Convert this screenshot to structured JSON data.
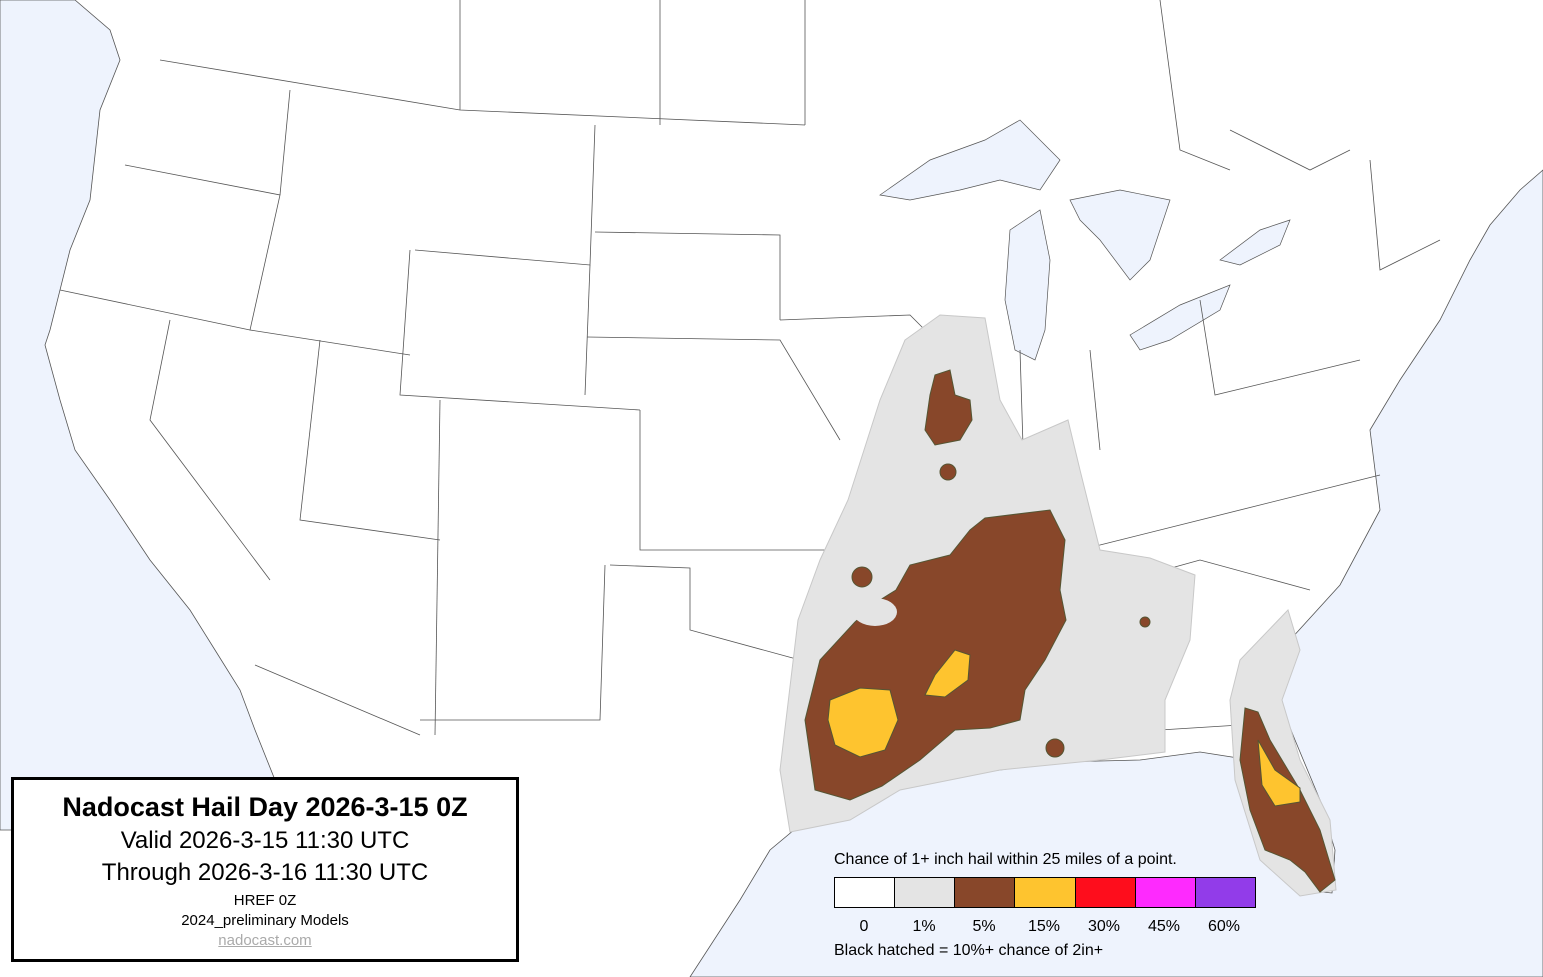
{
  "title": {
    "heading": "Nadocast Hail Day 2026-3-15 0Z",
    "valid": "Valid 2026-3-15 11:30 UTC",
    "through": "Through 2026-3-16 11:30 UTC",
    "model": "HREF 0Z",
    "models_version": "2024_preliminary Models",
    "link": "nadocast.com"
  },
  "legend": {
    "caption": "Chance of 1+ inch hail within 25 miles of a point.",
    "bins": [
      {
        "label": "0",
        "color": "#ffffff"
      },
      {
        "label": "1%",
        "color": "#e4e4e4"
      },
      {
        "label": "5%",
        "color": "#88472a"
      },
      {
        "label": "15%",
        "color": "#fec42f"
      },
      {
        "label": "30%",
        "color": "#fe0d1c"
      },
      {
        "label": "45%",
        "color": "#fe2afe"
      },
      {
        "label": "60%",
        "color": "#923ce9"
      }
    ],
    "hatch_note": "Black hatched = 10%+ chance of 2in+"
  },
  "colors": {
    "water": "#eef3fd",
    "land": "#ffffff",
    "border": "#555555"
  }
}
